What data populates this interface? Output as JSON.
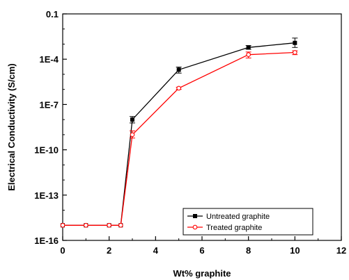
{
  "chart_data": {
    "type": "line",
    "title": "",
    "xlabel": "Wt% graphite",
    "ylabel": "Electrical Conductivity (S/cm)",
    "xlim": [
      0,
      12
    ],
    "ylim": [
      1e-16,
      0.1
    ],
    "yscale": "log",
    "x_ticks": [
      0,
      2,
      4,
      6,
      8,
      10,
      12
    ],
    "x_tick_labels": [
      "0",
      "2",
      "4",
      "6",
      "8",
      "10",
      "12"
    ],
    "y_ticks": [
      1e-16,
      1e-13,
      1e-10,
      1e-07,
      0.0001,
      0.1
    ],
    "y_tick_labels": [
      "1E-16",
      "1E-13",
      "1E-10",
      "1E-7",
      "1E-4",
      "0.1"
    ],
    "grid": false,
    "legend_position": "bottom-right",
    "series": [
      {
        "name": "Untreated graphite",
        "color": "#000000",
        "marker": "filled-square",
        "x": [
          0,
          1,
          2,
          2.5,
          3,
          5,
          8,
          10
        ],
        "y": [
          1e-15,
          1e-15,
          1e-15,
          1e-15,
          1e-08,
          2e-05,
          0.0006,
          0.0012
        ],
        "yerr_low": [
          null,
          null,
          null,
          null,
          6e-09,
          1.2e-05,
          0.00045,
          0.0006
        ],
        "yerr_high": [
          null,
          null,
          null,
          null,
          1.6e-08,
          3e-05,
          0.0008,
          0.0025
        ]
      },
      {
        "name": "Treated graphite",
        "color": "#ff0000",
        "marker": "open-circle",
        "x": [
          0,
          1,
          2,
          2.5,
          3,
          5,
          8,
          10
        ],
        "y": [
          1e-15,
          1e-15,
          1e-15,
          1e-15,
          1e-09,
          1.2e-06,
          0.0002,
          0.00028
        ],
        "yerr_low": [
          null,
          null,
          null,
          null,
          6e-10,
          1e-06,
          0.00012,
          0.0002
        ],
        "yerr_high": [
          null,
          null,
          null,
          null,
          1.8e-09,
          1.4e-06,
          0.0003,
          0.00036
        ]
      }
    ]
  }
}
